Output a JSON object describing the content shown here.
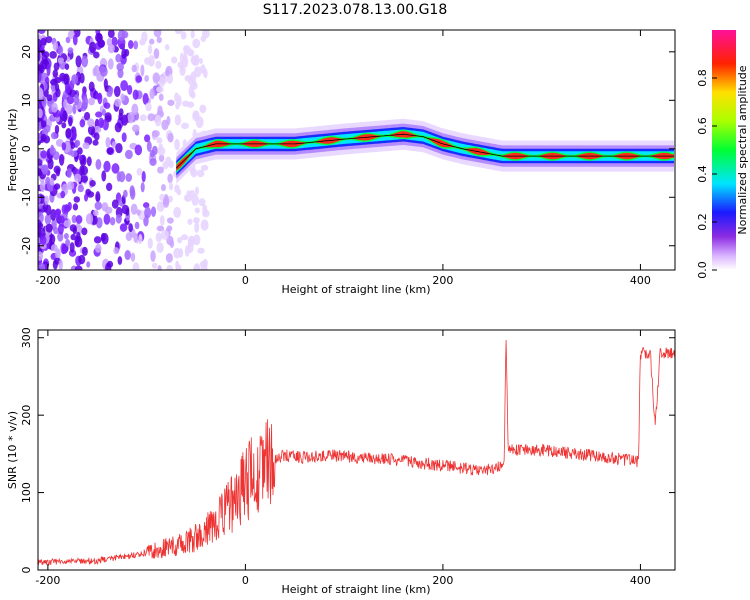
{
  "title": "S117.2023.078.13.00.G18",
  "chart_data": [
    {
      "type": "heatmap",
      "xlabel": "Height of straight line (km)",
      "ylabel": "Frequency (Hz)",
      "xlim": [
        -210,
        435
      ],
      "ylim": [
        -25,
        24.5
      ],
      "xticks": [
        -200,
        0,
        200,
        400
      ],
      "yticks": [
        -20,
        -10,
        0,
        10,
        20
      ],
      "colorbar": {
        "label": "Normalized spectral amplitude",
        "range": [
          0,
          1
        ],
        "ticks": [
          "0.0",
          "0.2",
          "0.4",
          "0.6",
          "0.8"
        ],
        "tick_values": [
          0.0,
          0.2,
          0.4,
          0.6,
          0.8
        ]
      },
      "ridge": {
        "x": [
          -70,
          -50,
          -30,
          0,
          50,
          100,
          130,
          160,
          180,
          200,
          220,
          260,
          300,
          350,
          400,
          435
        ],
        "frequency": [
          -4,
          0,
          1,
          1,
          1,
          2,
          2.5,
          3,
          2.5,
          1,
          0,
          -1.5,
          -1.5,
          -1.5,
          -1.5,
          -1.5
        ]
      }
    },
    {
      "type": "line",
      "xlabel": "Height of straight line (km)",
      "ylabel": "SNR (10 * v/v)",
      "xlim": [
        -210,
        435
      ],
      "ylim": [
        0,
        310
      ],
      "xticks": [
        -200,
        0,
        200,
        400
      ],
      "yticks": [
        0,
        100,
        200,
        300
      ],
      "color": "#ee3333",
      "series": [
        {
          "x": [
            -210,
            -150,
            -100,
            -60,
            -40,
            -20,
            0,
            20,
            40,
            60,
            90,
            120,
            150,
            200,
            240,
            262,
            264,
            266,
            300,
            350,
            398,
            400,
            410,
            415,
            420,
            435
          ],
          "values": [
            10,
            12,
            22,
            35,
            50,
            75,
            110,
            140,
            148,
            145,
            148,
            145,
            142,
            135,
            128,
            135,
            305,
            155,
            155,
            148,
            140,
            280,
            280,
            185,
            280,
            280
          ]
        }
      ]
    }
  ]
}
